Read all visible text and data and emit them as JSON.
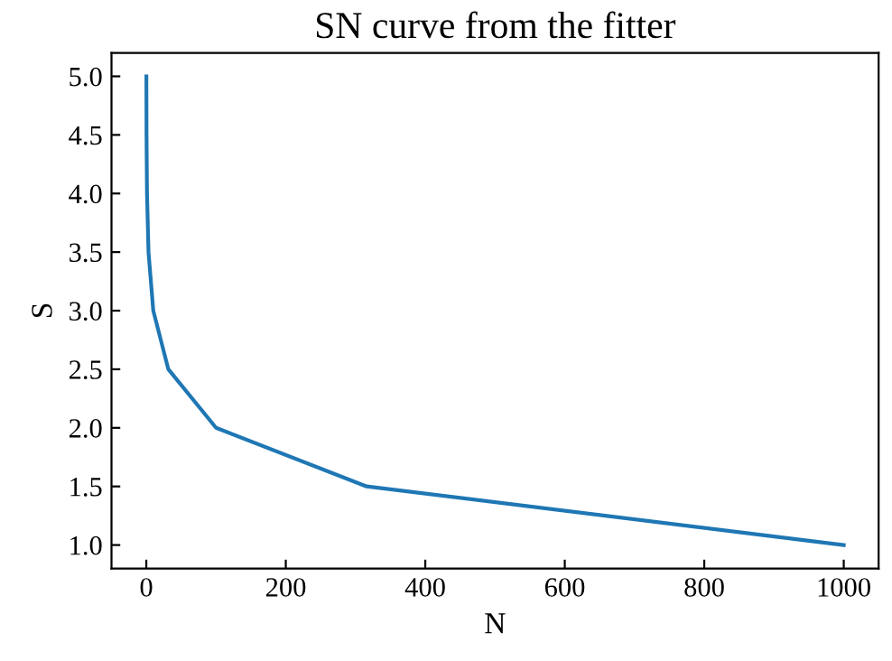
{
  "chart_data": {
    "type": "line",
    "title": "SN curve from the fitter",
    "xlabel": "N",
    "ylabel": "S",
    "x": [
      0.1,
      0.316,
      1,
      3.16,
      10,
      31.6,
      100,
      316,
      1000
    ],
    "series": [
      {
        "color": "#1f77b4",
        "values": [
          5.0,
          4.5,
          4.0,
          3.5,
          3.0,
          2.5,
          2.0,
          1.5,
          1.0
        ]
      }
    ],
    "xlim": [
      -49.9,
      1050
    ],
    "ylim": [
      0.8,
      5.2
    ],
    "xticks": [
      0,
      200,
      400,
      600,
      800,
      1000
    ],
    "yticks": [
      {
        "value": 1,
        "label": "1.0"
      },
      {
        "value": 1.5,
        "label": "1.5"
      },
      {
        "value": 2,
        "label": "2.0"
      },
      {
        "value": 2.5,
        "label": "2.5"
      },
      {
        "value": 3,
        "label": "3.0"
      },
      {
        "value": 3.5,
        "label": "3.5"
      },
      {
        "value": 4,
        "label": "4.0"
      },
      {
        "value": 4.5,
        "label": "4.5"
      },
      {
        "value": 5,
        "label": "5.0"
      }
    ],
    "grid": false,
    "legend": false,
    "marker": "none",
    "line_style": "solid"
  }
}
